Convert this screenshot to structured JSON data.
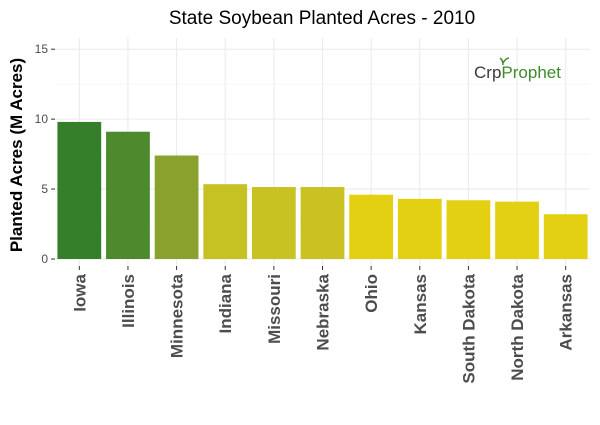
{
  "chart_data": {
    "type": "bar",
    "title": "State Soybean Planted Acres - 2010",
    "xlabel": "",
    "ylabel": "Planted Acres (M Acres)",
    "categories": [
      "Iowa",
      "Illinois",
      "Minnesota",
      "Indiana",
      "Missouri",
      "Nebraska",
      "Ohio",
      "Kansas",
      "South Dakota",
      "North Dakota",
      "Arkansas"
    ],
    "values": [
      9.8,
      9.1,
      7.4,
      5.35,
      5.15,
      5.15,
      4.6,
      4.3,
      4.2,
      4.1,
      3.2
    ],
    "bar_colors": [
      "#367f2a",
      "#4d8a2e",
      "#89a22e",
      "#c6c223",
      "#c8c323",
      "#c9c222",
      "#e4d013",
      "#e3d012",
      "#e3d012",
      "#e3d012",
      "#e3d012"
    ],
    "ylim": [
      -0.5,
      15.8
    ],
    "yticks": [
      0,
      5,
      10,
      15
    ],
    "grid": true,
    "legend": "none"
  },
  "logo": {
    "part1": "Cr",
    "part2": "p",
    "part3": "Prophet",
    "colors": {
      "dark": "#3b3b3b",
      "green": "#3d8b2b"
    }
  }
}
